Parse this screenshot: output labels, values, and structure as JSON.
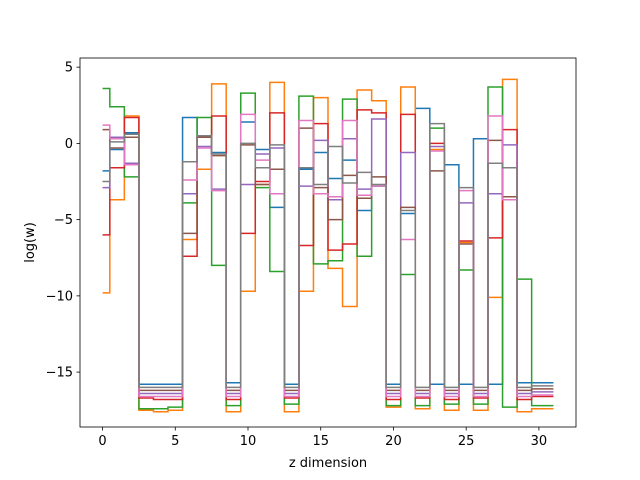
{
  "chart_data": {
    "type": "line",
    "style": "step-mid",
    "title": "",
    "xlabel": "z dimension",
    "ylabel": "log(w)",
    "xlim": [
      -1.55,
      32.55
    ],
    "ylim": [
      -18.6,
      5.6
    ],
    "xticks": [
      0,
      5,
      10,
      15,
      20,
      25,
      30
    ],
    "xtick_labels": [
      "0",
      "5",
      "10",
      "15",
      "20",
      "25",
      "30"
    ],
    "yticks": [
      -15,
      -10,
      -5,
      0,
      5
    ],
    "ytick_labels": [
      "−15",
      "−10",
      "−5",
      "0",
      "5"
    ],
    "grid": false,
    "legend": "none",
    "x": [
      0,
      1,
      2,
      3,
      4,
      5,
      6,
      7,
      8,
      9,
      10,
      11,
      12,
      13,
      14,
      15,
      16,
      17,
      18,
      19,
      20,
      21,
      22,
      23,
      24,
      25,
      26,
      27,
      28,
      29,
      30,
      31
    ],
    "series": [
      {
        "color": "#1f77b4",
        "values": [
          -1.8,
          -0.4,
          0.7,
          -15.8,
          -15.8,
          -15.8,
          1.7,
          0.4,
          -0.6,
          -15.7,
          1.4,
          -0.4,
          -4.2,
          -15.8,
          -1.7,
          -0.6,
          -2.3,
          -1.1,
          -4.4,
          -2.8,
          -15.8,
          -4.6,
          2.3,
          -15.8,
          -1.4,
          -15.8,
          0.3,
          -15.8,
          -1.6,
          -15.7,
          -15.7,
          -15.7
        ]
      },
      {
        "color": "#ff7f0e",
        "values": [
          -9.8,
          -3.7,
          1.8,
          -17.5,
          -17.6,
          -17.5,
          -6.3,
          -1.7,
          3.9,
          -17.6,
          -9.7,
          -2.7,
          4.0,
          -17.6,
          -9.7,
          3.0,
          -8.2,
          -10.7,
          3.5,
          2.8,
          -17.3,
          3.7,
          -17.4,
          -0.4,
          -17.5,
          -6.5,
          -17.5,
          -10.1,
          4.2,
          -17.6,
          -17.4,
          -17.4
        ]
      },
      {
        "color": "#2ca02c",
        "values": [
          3.6,
          2.4,
          -2.2,
          -17.4,
          -17.4,
          -17.3,
          -3.9,
          1.7,
          -8.0,
          -17.2,
          3.3,
          -2.9,
          -8.4,
          -17.1,
          3.1,
          -7.9,
          -7.7,
          2.9,
          -7.4,
          -2.8,
          -17.2,
          -8.6,
          -17.2,
          1.0,
          -17.1,
          -8.3,
          -17.1,
          3.7,
          -17.3,
          -8.9,
          -17.2,
          -17.2
        ]
      },
      {
        "color": "#d62728",
        "values": [
          -6.0,
          -1.6,
          1.7,
          -16.7,
          -16.8,
          -16.8,
          -7.4,
          0.4,
          1.8,
          -16.8,
          -5.9,
          -2.5,
          2.0,
          -16.7,
          -6.7,
          1.3,
          -7.0,
          -6.6,
          2.2,
          2.0,
          -16.8,
          1.9,
          -16.7,
          0.0,
          -16.8,
          -6.4,
          -16.7,
          -6.2,
          0.9,
          -16.8,
          -16.6,
          -16.6
        ]
      },
      {
        "color": "#9467bd",
        "values": [
          -2.9,
          0.4,
          -1.3,
          -16.4,
          -16.4,
          -16.4,
          -3.3,
          -0.2,
          -3.0,
          -16.4,
          -2.7,
          -0.7,
          -0.3,
          -16.4,
          -2.8,
          0.2,
          -3.7,
          0.3,
          -3.0,
          1.6,
          -16.4,
          -0.6,
          -16.4,
          -0.2,
          -16.4,
          -3.9,
          -16.4,
          -3.3,
          -0.1,
          -16.4,
          -16.3,
          -16.3
        ]
      },
      {
        "color": "#8c564b",
        "values": [
          0.9,
          -0.3,
          0.4,
          -16.2,
          -16.2,
          -16.2,
          -5.9,
          0.4,
          -0.8,
          -16.2,
          -0.1,
          -2.7,
          -1.7,
          -16.2,
          1.0,
          -2.9,
          -5.0,
          -2.1,
          -3.6,
          -2.2,
          -16.2,
          -4.2,
          -16.2,
          -1.8,
          -16.2,
          -6.6,
          -16.2,
          0.2,
          -3.5,
          -16.2,
          -16.1,
          -16.1
        ]
      },
      {
        "color": "#e377c2",
        "values": [
          1.2,
          0.3,
          -1.4,
          -16.6,
          -16.6,
          -16.6,
          -2.4,
          -0.3,
          -3.1,
          -16.6,
          1.9,
          -1.1,
          -3.3,
          -16.6,
          1.5,
          -3.3,
          -3.5,
          1.5,
          -3.4,
          -2.8,
          -16.6,
          -6.3,
          -16.6,
          -0.5,
          -16.6,
          -3.1,
          -16.6,
          1.8,
          -3.7,
          -16.6,
          -16.5,
          -16.5
        ]
      },
      {
        "color": "#7f7f7f",
        "values": [
          -2.5,
          0.1,
          0.6,
          -16.0,
          -16.0,
          -16.0,
          -1.2,
          0.5,
          -0.7,
          -16.0,
          0.0,
          -1.6,
          -0.1,
          -16.0,
          -1.6,
          -2.7,
          -0.2,
          -2.6,
          -1.9,
          -2.7,
          -16.0,
          -4.4,
          -16.0,
          1.3,
          -16.0,
          -2.9,
          -16.0,
          -1.3,
          -1.6,
          -16.0,
          -15.9,
          -15.9
        ]
      }
    ]
  }
}
